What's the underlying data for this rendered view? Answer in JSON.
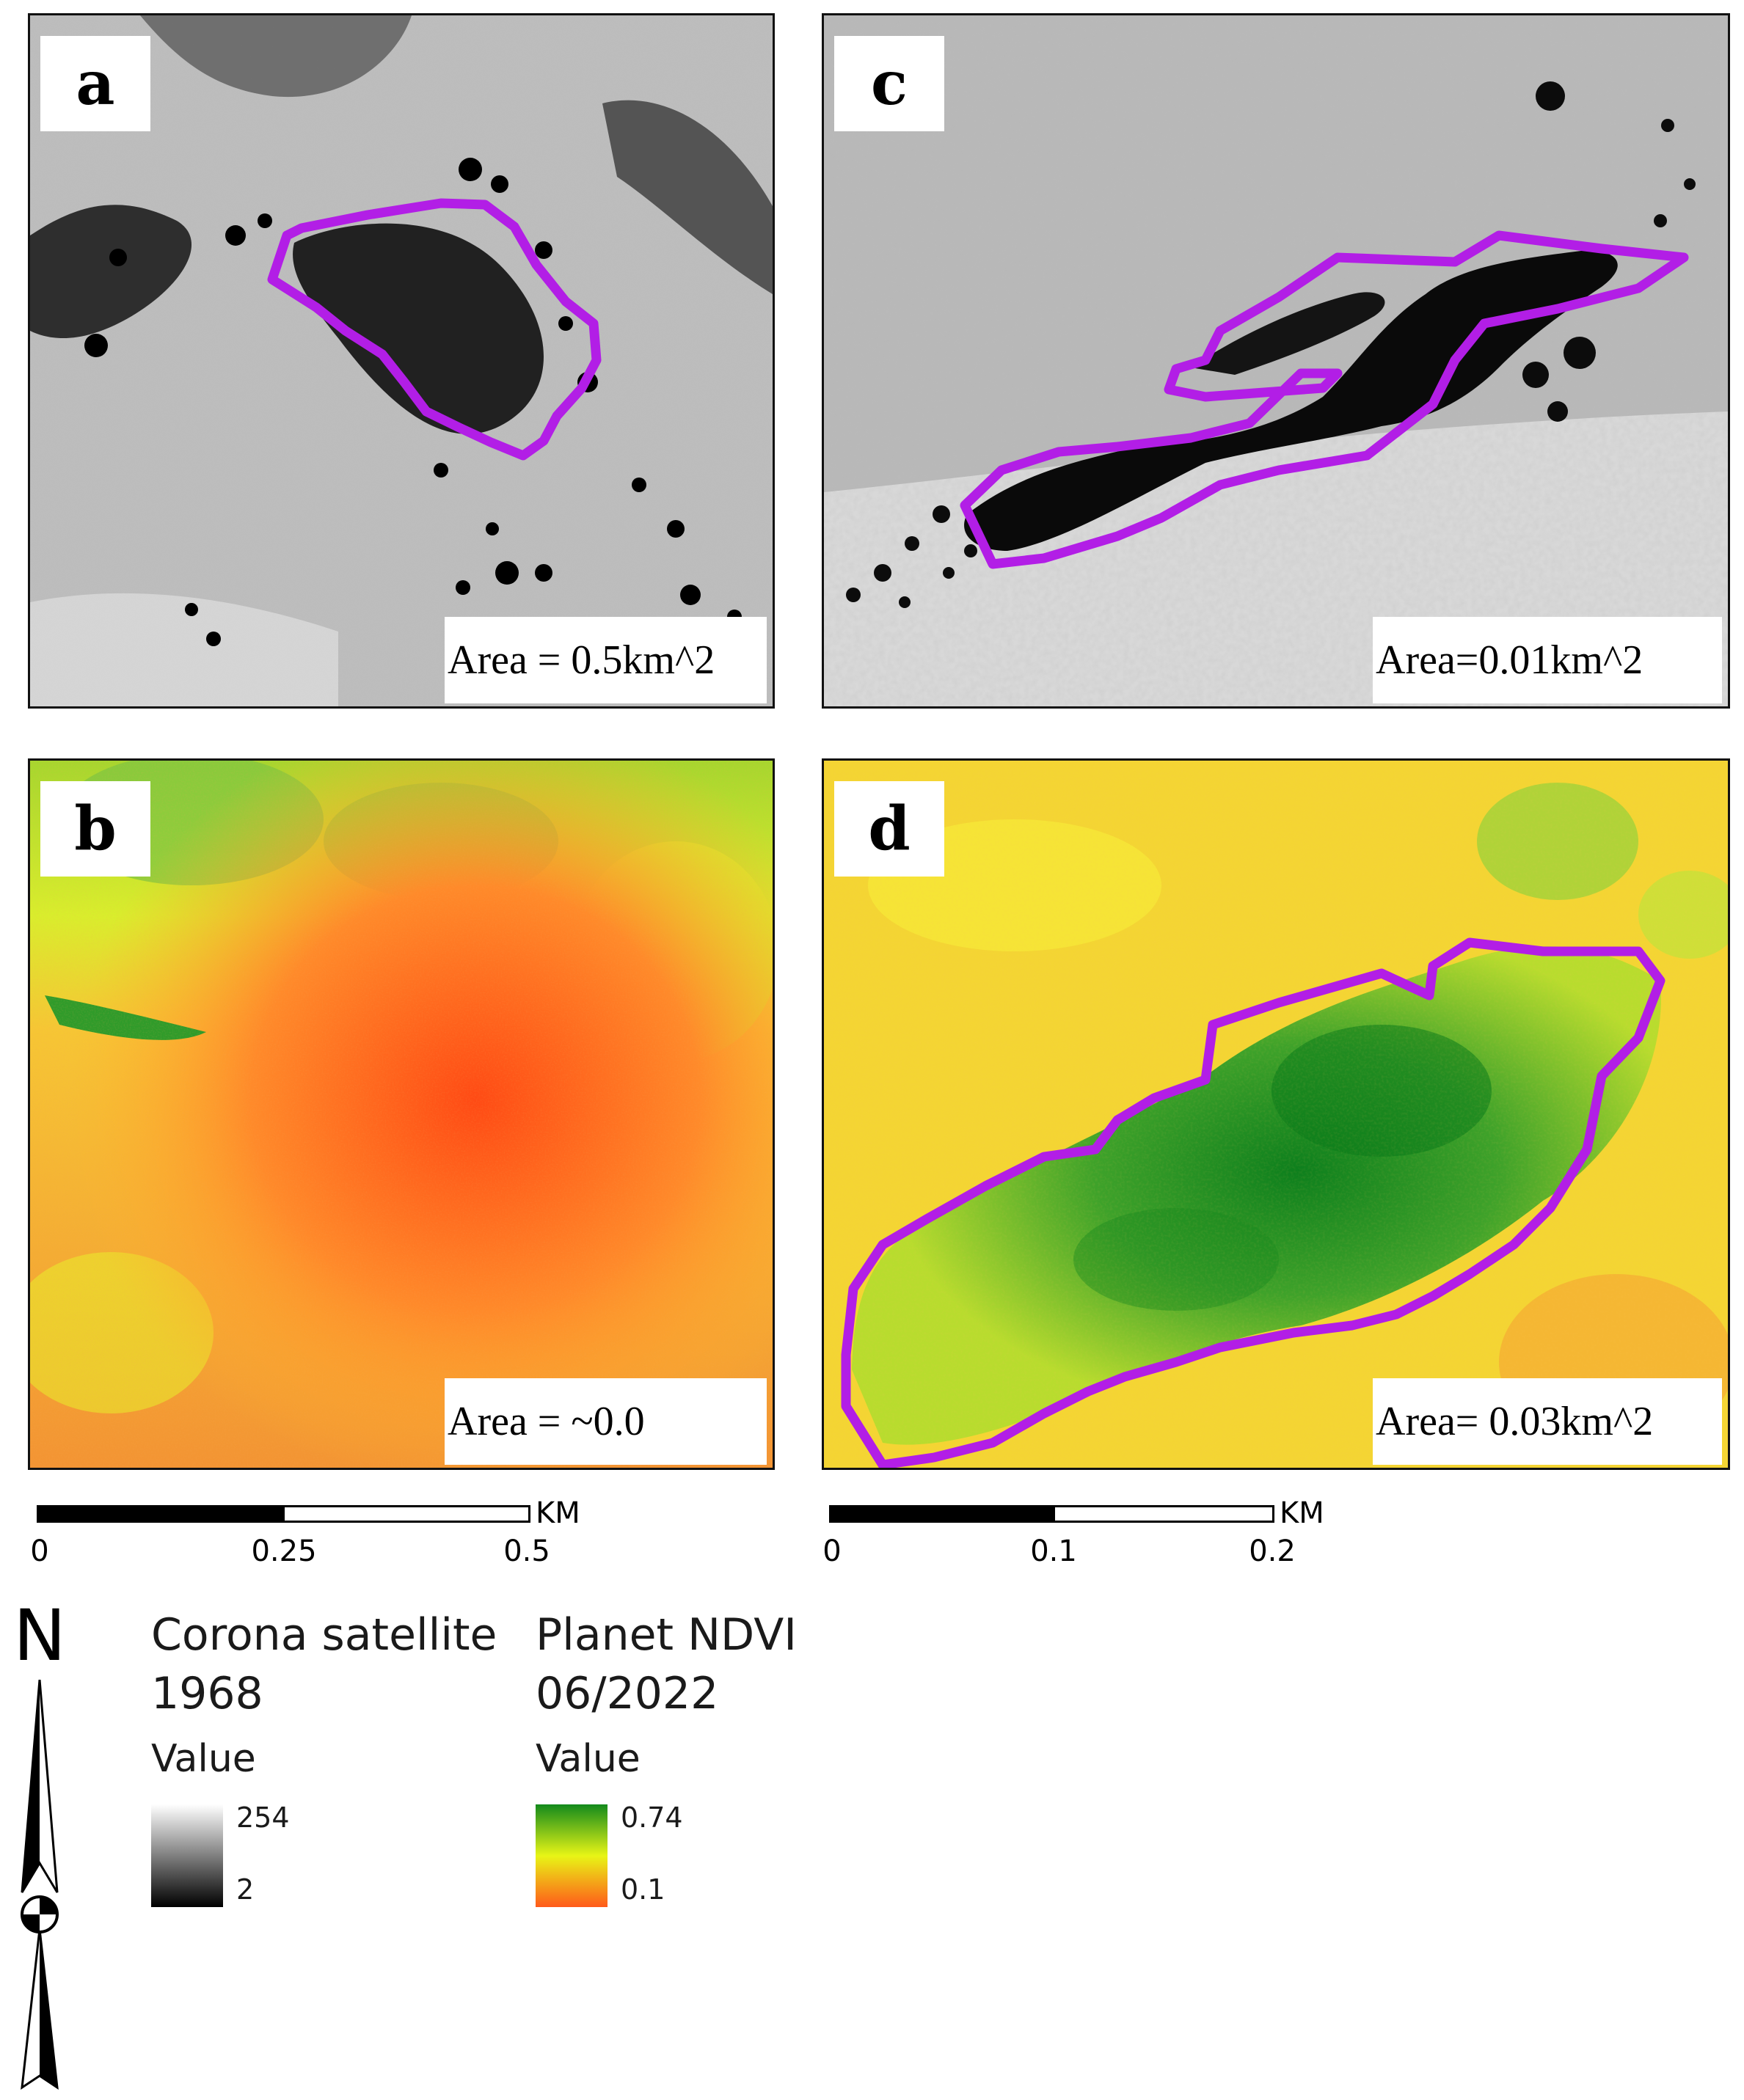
{
  "panels": {
    "a": {
      "letter": "a",
      "area": "Area = 0.5km^2"
    },
    "b": {
      "letter": "b",
      "area": "Area = ~0.0"
    },
    "c": {
      "letter": "c",
      "area": "Area=0.01km^2"
    },
    "d": {
      "letter": "d",
      "area": "Area= 0.03km^2"
    }
  },
  "scalebars": {
    "left": {
      "unit": "KM",
      "ticks": [
        "0",
        "0.25",
        "0.5"
      ]
    },
    "right": {
      "unit": "KM",
      "ticks": [
        "0",
        "0.1",
        "0.2"
      ]
    }
  },
  "north_arrow": {
    "label": "N"
  },
  "legend": {
    "corona": {
      "title_line1": "Corona satellite",
      "title_line2": "1968",
      "value_label": "Value",
      "max": "254",
      "min": "2",
      "colors": [
        "#ffffff",
        "#000000"
      ]
    },
    "ndvi": {
      "title_line1": "Planet NDVI",
      "title_line2": "06/2022",
      "value_label": "Value",
      "max": "0.74",
      "min": "0.1",
      "colors": [
        "#138a1c",
        "#e8f516",
        "#ff5a1a"
      ]
    }
  },
  "colors": {
    "outline": "#b21ee6"
  }
}
